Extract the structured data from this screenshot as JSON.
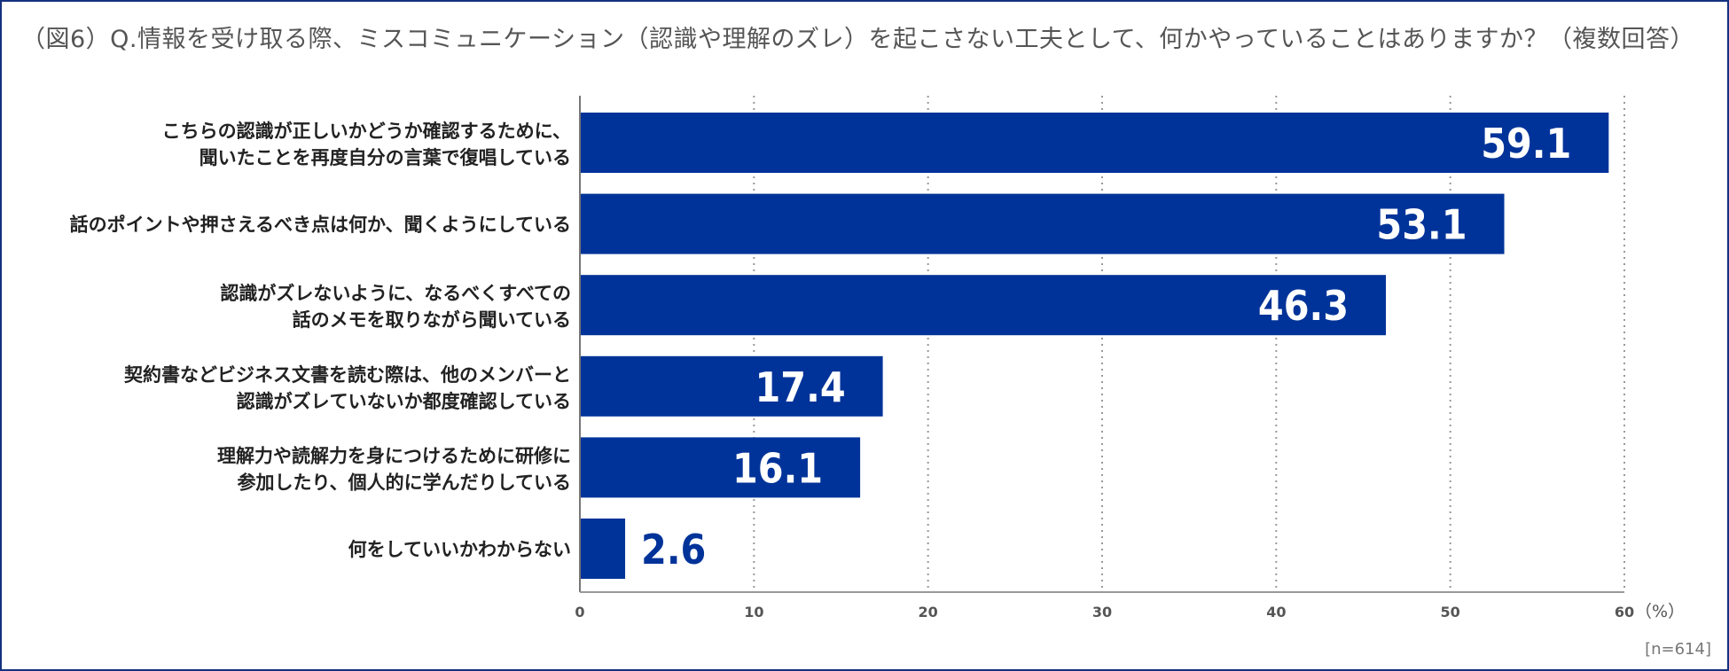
{
  "chart_data": {
    "type": "bar",
    "orientation": "horizontal",
    "title": "（図6）Q.情報を受け取る際、ミスコミュニケーション（認識や理解のズレ）を起こさない工夫として、何かやっていることはありますか？（複数回答）",
    "categories": [
      [
        "こちらの認識が正しいかどうか確認するために、",
        "聞いたことを再度自分の言葉で復唱している"
      ],
      [
        "話のポイントや押さえるべき点は何か、聞くようにしている"
      ],
      [
        "認識がズレないように、なるべくすべての",
        "話のメモを取りながら聞いている"
      ],
      [
        "契約書などビジネス文書を読む際は、他のメンバーと",
        "認識がズレていないか都度確認している"
      ],
      [
        "理解力や読解力を身につけるために研修に",
        "参加したり、個人的に学んだりしている"
      ],
      [
        "何をしていいかわからない"
      ]
    ],
    "values": [
      59.1,
      53.1,
      46.3,
      17.4,
      16.1,
      2.6
    ],
    "value_labels": [
      "59.1",
      "53.1",
      "46.3",
      "17.4",
      "16.1",
      "2.6"
    ],
    "xlim": [
      0,
      60
    ],
    "xticks": [
      "0",
      "10",
      "20",
      "30",
      "40",
      "50",
      "60"
    ],
    "unit": "（%）",
    "grid": "vertical dotted",
    "sample_note": "[n=614]",
    "colors": {
      "bar": "#003399",
      "label_inside": "#ffffff",
      "label_outside": "#003399",
      "grid": "#999999"
    }
  }
}
